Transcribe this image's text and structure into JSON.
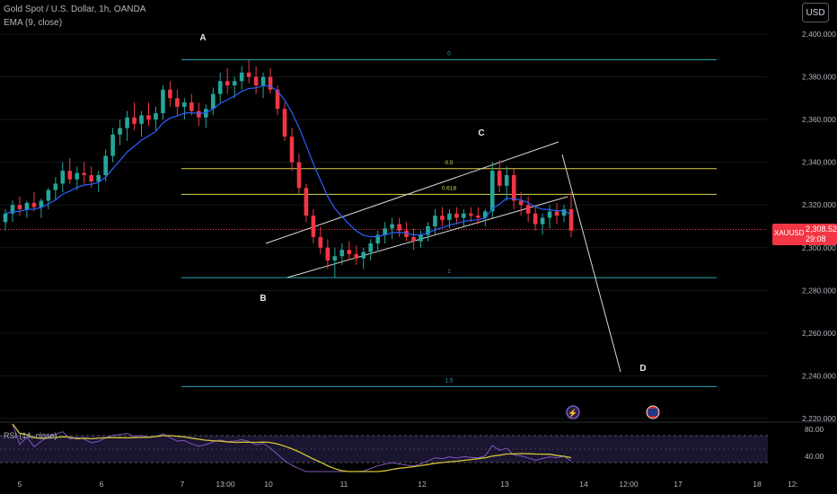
{
  "header": {
    "title": "Gold Spot / U.S. Dollar, 1h, OANDA",
    "indicator": "EMA (9, close)",
    "currency": "USD"
  },
  "price_tag": {
    "symbol": "XAUUSD",
    "price": "2,308.525",
    "countdown": "29:08"
  },
  "rsi": {
    "label": "RSI (14, close)",
    "upper": "80.00",
    "lower": "40.00"
  },
  "colors": {
    "background": "#000000",
    "up": "#26a69a",
    "down": "#f23645",
    "ema": "#2962ff",
    "fib_outer": "#2aa7b5",
    "fib_inner": "#d9d44a",
    "channel": "#d8d8d8",
    "rsi_line": "#7e57c2",
    "rsi_ma": "#d4c234"
  },
  "chart_data": {
    "type": "candlestick",
    "y_ticks": [
      "2,400.000",
      "2,380.000",
      "2,360.000",
      "2,340.000",
      "2,320.000",
      "2,300.000",
      "2,280.000",
      "2,260.000",
      "2,240.000",
      "2,220.000"
    ],
    "y_tick_values": [
      2400,
      2380,
      2360,
      2340,
      2320,
      2300,
      2280,
      2260,
      2240,
      2220
    ],
    "x_ticks": [
      "5",
      "6",
      "7",
      "13:00",
      "10",
      "11",
      "12",
      "13",
      "14",
      "12:00",
      "17",
      "18",
      "12:"
    ],
    "fib_levels": [
      {
        "label": "0",
        "price": 2388
      },
      {
        "label": "0.5",
        "price": 2337
      },
      {
        "label": "0.618",
        "price": 2325
      },
      {
        "label": "1",
        "price": 2286
      },
      {
        "label": "1.5",
        "price": 2235
      }
    ],
    "wave_labels": [
      "A",
      "B",
      "C",
      "D"
    ],
    "last_price": 2308.525,
    "ohlc": [
      [
        2312,
        2318,
        2308,
        2316
      ],
      [
        2316,
        2322,
        2312,
        2320
      ],
      [
        2320,
        2324,
        2315,
        2318
      ],
      [
        2318,
        2322,
        2314,
        2321
      ],
      [
        2321,
        2326,
        2317,
        2319
      ],
      [
        2319,
        2323,
        2314,
        2322
      ],
      [
        2322,
        2328,
        2318,
        2327
      ],
      [
        2327,
        2333,
        2322,
        2330
      ],
      [
        2330,
        2340,
        2326,
        2336
      ],
      [
        2336,
        2342,
        2330,
        2332
      ],
      [
        2332,
        2338,
        2327,
        2335
      ],
      [
        2335,
        2340,
        2330,
        2334
      ],
      [
        2334,
        2338,
        2328,
        2331
      ],
      [
        2331,
        2336,
        2326,
        2334
      ],
      [
        2334,
        2346,
        2331,
        2343
      ],
      [
        2343,
        2356,
        2340,
        2353
      ],
      [
        2353,
        2360,
        2348,
        2356
      ],
      [
        2356,
        2364,
        2350,
        2361
      ],
      [
        2361,
        2368,
        2355,
        2358
      ],
      [
        2358,
        2364,
        2352,
        2362
      ],
      [
        2362,
        2368,
        2357,
        2360
      ],
      [
        2360,
        2366,
        2355,
        2363
      ],
      [
        2363,
        2376,
        2360,
        2374
      ],
      [
        2374,
        2378,
        2366,
        2370
      ],
      [
        2370,
        2374,
        2362,
        2366
      ],
      [
        2366,
        2370,
        2360,
        2368
      ],
      [
        2368,
        2372,
        2362,
        2364
      ],
      [
        2364,
        2368,
        2357,
        2361
      ],
      [
        2361,
        2367,
        2356,
        2365
      ],
      [
        2365,
        2375,
        2362,
        2372
      ],
      [
        2372,
        2382,
        2368,
        2378
      ],
      [
        2378,
        2384,
        2372,
        2376
      ],
      [
        2376,
        2380,
        2370,
        2378
      ],
      [
        2378,
        2385,
        2374,
        2382
      ],
      [
        2382,
        2388,
        2377,
        2380
      ],
      [
        2380,
        2385,
        2372,
        2376
      ],
      [
        2376,
        2382,
        2370,
        2380
      ],
      [
        2380,
        2384,
        2372,
        2374
      ],
      [
        2374,
        2376,
        2362,
        2365
      ],
      [
        2365,
        2368,
        2350,
        2352
      ],
      [
        2352,
        2356,
        2336,
        2340
      ],
      [
        2340,
        2344,
        2325,
        2328
      ],
      [
        2328,
        2330,
        2312,
        2315
      ],
      [
        2315,
        2318,
        2302,
        2305
      ],
      [
        2305,
        2310,
        2297,
        2300
      ],
      [
        2300,
        2304,
        2290,
        2294
      ],
      [
        2294,
        2300,
        2286,
        2296
      ],
      [
        2296,
        2302,
        2292,
        2299
      ],
      [
        2299,
        2303,
        2294,
        2297
      ],
      [
        2297,
        2301,
        2292,
        2295
      ],
      [
        2295,
        2300,
        2290,
        2298
      ],
      [
        2298,
        2304,
        2294,
        2302
      ],
      [
        2302,
        2308,
        2298,
        2306
      ],
      [
        2306,
        2312,
        2302,
        2309
      ],
      [
        2309,
        2314,
        2304,
        2311
      ],
      [
        2311,
        2314,
        2305,
        2308
      ],
      [
        2308,
        2312,
        2303,
        2305
      ],
      [
        2305,
        2309,
        2299,
        2303
      ],
      [
        2303,
        2308,
        2300,
        2306
      ],
      [
        2306,
        2312,
        2303,
        2310
      ],
      [
        2310,
        2318,
        2306,
        2315
      ],
      [
        2315,
        2319,
        2310,
        2313
      ],
      [
        2313,
        2318,
        2309,
        2316
      ],
      [
        2316,
        2319,
        2311,
        2314
      ],
      [
        2314,
        2318,
        2310,
        2316
      ],
      [
        2316,
        2319,
        2312,
        2315
      ],
      [
        2315,
        2319,
        2311,
        2314
      ],
      [
        2314,
        2318,
        2310,
        2317
      ],
      [
        2317,
        2340,
        2314,
        2336
      ],
      [
        2336,
        2341,
        2326,
        2329
      ],
      [
        2329,
        2338,
        2322,
        2334
      ],
      [
        2334,
        2337,
        2318,
        2322
      ],
      [
        2322,
        2326,
        2315,
        2320
      ],
      [
        2320,
        2324,
        2312,
        2316
      ],
      [
        2316,
        2320,
        2308,
        2311
      ],
      [
        2311,
        2316,
        2306,
        2314
      ],
      [
        2314,
        2320,
        2309,
        2317
      ],
      [
        2317,
        2321,
        2311,
        2315
      ],
      [
        2315,
        2320,
        2312,
        2318
      ],
      [
        2318,
        2326,
        2305,
        2308
      ]
    ]
  }
}
